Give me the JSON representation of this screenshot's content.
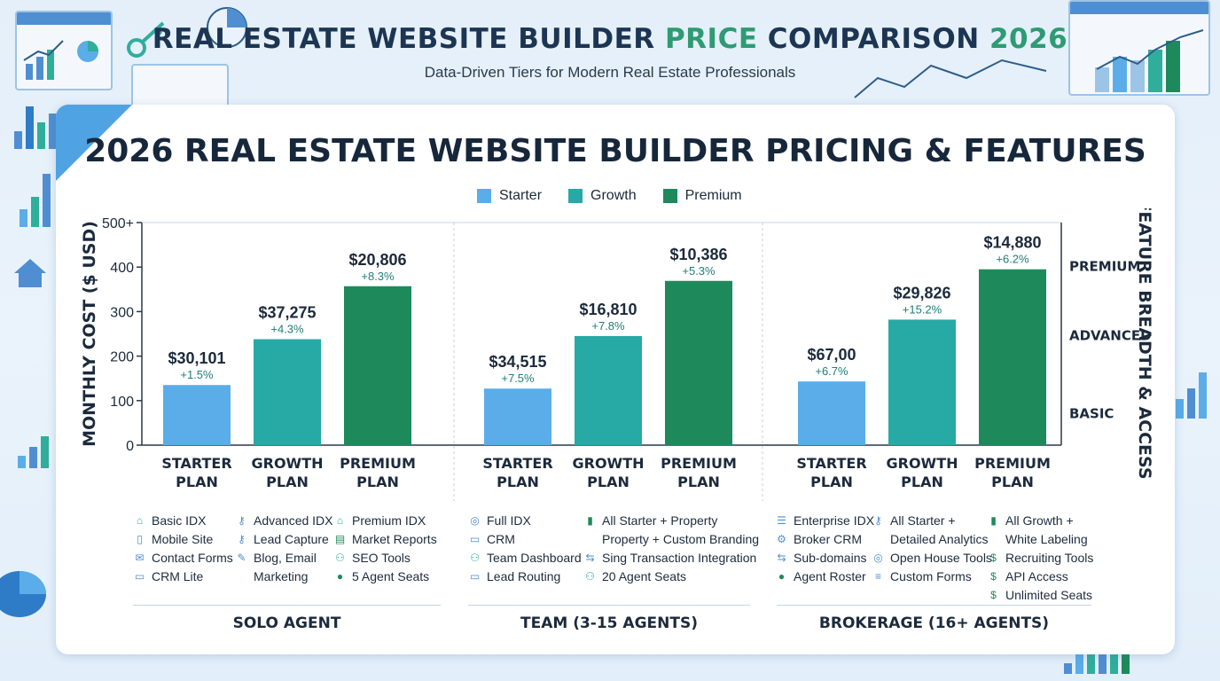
{
  "header": {
    "title_part1": "REAL ESTATE WEBSITE BUILDER ",
    "title_accent1": "PRICE",
    "title_part2": " COMPARISON ",
    "title_accent2": "2026",
    "subtitle": "Data-Driven Tiers for Modern Real Estate Professionals"
  },
  "colors": {
    "starter": "#5aade8",
    "growth": "#27a9a6",
    "premium": "#1e8a5c",
    "accent_green": "#2e9b73",
    "panel_corner": "#4fa3e3"
  },
  "chart_data": {
    "type": "bar",
    "title": "2026 REAL ESTATE WEBSITE BUILDER PRICING & FEATURES",
    "ylabel": "MONTHLY COST ($ USD)",
    "ylabel_right": "FEATURE BREADTH & ACCESS",
    "ylim": [
      0,
      500
    ],
    "yticks": [
      "0",
      "100",
      "200",
      "300",
      "400",
      "500+"
    ],
    "right_ticks": [
      {
        "label": "BASIC",
        "value": 73
      },
      {
        "label": "ADVANCED",
        "value": 248
      },
      {
        "label": "PREMIUM",
        "value": 403
      }
    ],
    "legend": [
      "Starter",
      "Growth",
      "Premium"
    ],
    "legend_position": "top-center",
    "grid": false,
    "groups": [
      {
        "segment": "SOLO AGENT",
        "bars": [
          {
            "tier": "Starter",
            "category": "STARTER\nPLAN",
            "value": 135,
            "price": "$30,101",
            "change": "+1.5%"
          },
          {
            "tier": "Growth",
            "category": "GROWTH\nPLAN",
            "value": 238,
            "price": "$37,275",
            "change": "+4.3%"
          },
          {
            "tier": "Premium",
            "category": "PREMIUM\nPLAN",
            "value": 357,
            "price": "$20,806",
            "change": "+8.3%"
          }
        ]
      },
      {
        "segment": "TEAM (3-15 AGENTS)",
        "bars": [
          {
            "tier": "Starter",
            "category": "STARTER\nPLAN",
            "value": 127,
            "price": "$34,515",
            "change": "+7.5%"
          },
          {
            "tier": "Growth",
            "category": "GROWTH\nPLAN",
            "value": 245,
            "price": "$16,810",
            "change": "+7.8%"
          },
          {
            "tier": "Premium",
            "category": "PREMIUM\nPLAN",
            "value": 369,
            "price": "$10,386",
            "change": "+5.3%"
          }
        ]
      },
      {
        "segment": "BROKERAGE (16+ AGENTS)",
        "bars": [
          {
            "tier": "Starter",
            "category": "STARTER\nPLAN",
            "value": 143,
            "price": "$67,00",
            "change": "+6.7%"
          },
          {
            "tier": "Growth",
            "category": "GROWTH\nPLAN",
            "value": 282,
            "price": "$29,826",
            "change": "+15.2%"
          },
          {
            "tier": "Premium",
            "category": "PREMIUM\nPLAN",
            "value": 395,
            "price": "$14,880",
            "change": "+6.2%"
          }
        ]
      }
    ]
  },
  "features": {
    "solo": [
      [
        {
          "icon": "home-icon",
          "text": "Basic IDX"
        },
        {
          "icon": "mobile-icon",
          "text": "Mobile Site"
        },
        {
          "icon": "envelope-icon",
          "text": "Contact Forms"
        },
        {
          "icon": "chat-icon",
          "text": "CRM Lite"
        }
      ],
      [
        {
          "icon": "key-icon",
          "text": "Advanced IDX"
        },
        {
          "icon": "key-icon",
          "text": "Lead Capture"
        },
        {
          "icon": "pencil-icon",
          "text": "Blog, Email\nMarketing"
        }
      ],
      [
        {
          "icon": "home-icon",
          "text": "Premium IDX"
        },
        {
          "icon": "report-icon",
          "text": "Market Reports"
        },
        {
          "icon": "people-icon",
          "text": "SEO Tools"
        },
        {
          "icon": "person-icon",
          "text": "5 Agent Seats"
        }
      ]
    ],
    "team": [
      [
        {
          "icon": "target-icon",
          "text": "Full IDX"
        },
        {
          "icon": "chat-icon",
          "text": "CRM"
        },
        {
          "icon": "people-icon",
          "text": "Team Dashboard"
        },
        {
          "icon": "chat-icon",
          "text": "Lead Routing"
        }
      ],
      [
        {
          "icon": "bar-chart-icon",
          "text": "All Starter + Property\nProperty + Custom Branding"
        },
        {
          "icon": "flow-icon",
          "text": "Sing Transaction Integration"
        },
        {
          "icon": "people-icon",
          "text": "20 Agent Seats"
        }
      ]
    ],
    "brokerage": [
      [
        {
          "icon": "list-icon",
          "text": "Enterprise IDX"
        },
        {
          "icon": "gear-icon",
          "text": "Broker CRM"
        },
        {
          "icon": "flow-icon",
          "text": "Sub-domains"
        },
        {
          "icon": "person-icon",
          "text": "Agent Roster"
        }
      ],
      [
        {
          "icon": "key-icon",
          "text": "All Starter +\nDetailed Analytics"
        },
        {
          "icon": "target-icon",
          "text": "Open House Tools"
        },
        {
          "icon": "database-icon",
          "text": "Custom Forms"
        }
      ],
      [
        {
          "icon": "bar-chart-icon",
          "text": "All Growth +\nWhite Labeling"
        },
        {
          "icon": "dollar-icon",
          "text": "Recruiting Tools"
        },
        {
          "icon": "dollar-icon",
          "text": "API Access"
        },
        {
          "icon": "dollar-circle-icon",
          "text": "Unlimited Seats"
        }
      ]
    ]
  }
}
